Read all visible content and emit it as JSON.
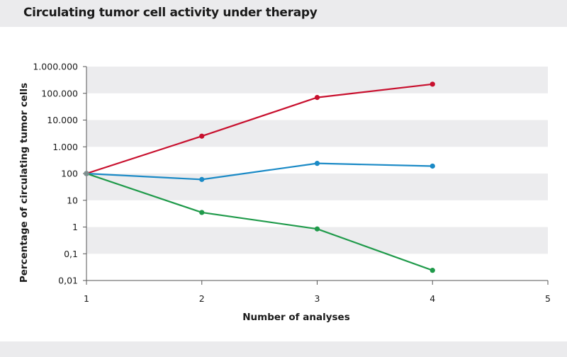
{
  "page": {
    "title": "Circulating tumor cell activity under therapy"
  },
  "chart_data": {
    "type": "line",
    "title": "Circulating tumor cell activity under therapy",
    "xlabel": "Number of analyses",
    "ylabel": "Percentage of circulating tumor cells",
    "y_scale": "log",
    "xlim": [
      1,
      5
    ],
    "ylim": [
      0.01,
      1000000
    ],
    "x_ticks": [
      1,
      2,
      3,
      4,
      5
    ],
    "x_tick_labels": [
      "1",
      "2",
      "3",
      "4",
      "5"
    ],
    "y_ticks": [
      0.01,
      0.1,
      1,
      10,
      100,
      1000,
      10000,
      100000,
      1000000
    ],
    "y_tick_labels": [
      "0,01",
      "0,1",
      "1",
      "10",
      "100",
      "1.000",
      "10.000",
      "100.000",
      "1.000.000"
    ],
    "grid": "alternating horizontal bands",
    "legend": "none",
    "series": [
      {
        "color": "#c8102e",
        "x": [
          1,
          2,
          3,
          4
        ],
        "y": [
          100,
          2500,
          70000,
          220000
        ]
      },
      {
        "color": "#1b8ac6",
        "x": [
          1,
          2,
          3,
          4
        ],
        "y": [
          100,
          60,
          240,
          190
        ]
      },
      {
        "color": "#1f9a4a",
        "x": [
          1,
          2,
          3,
          4
        ],
        "y": [
          100,
          3.5,
          0.85,
          0.024
        ]
      }
    ]
  }
}
